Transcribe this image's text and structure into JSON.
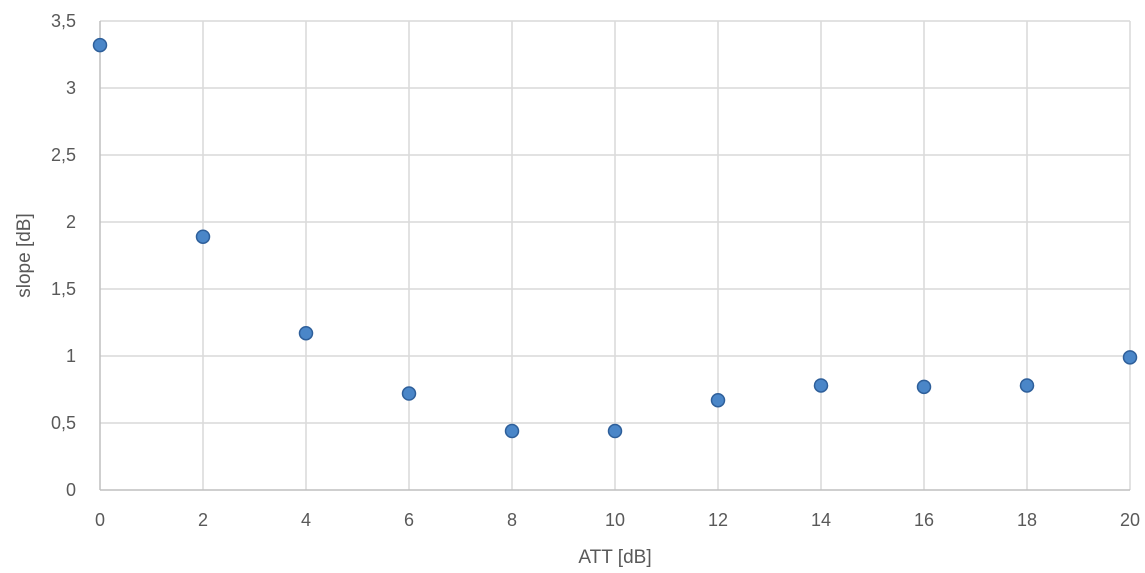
{
  "chart_data": {
    "type": "scatter",
    "title": "",
    "xlabel": "ATT [dB]",
    "ylabel": "slope [dB]",
    "xlim": [
      0,
      20
    ],
    "ylim": [
      0,
      3.5
    ],
    "x_ticks": [
      "0",
      "2",
      "4",
      "6",
      "8",
      "10",
      "12",
      "14",
      "16",
      "18",
      "20"
    ],
    "y_ticks": [
      "0",
      "0,5",
      "1",
      "1,5",
      "2",
      "2,5",
      "3",
      "3,5"
    ],
    "grid": true,
    "legend": "none",
    "marker_color": "#4a86c8",
    "marker_edge_color": "#2e5f9a",
    "grid_color": "#d9d9d9",
    "points": [
      {
        "x": 0,
        "y": 3.32
      },
      {
        "x": 2,
        "y": 1.89
      },
      {
        "x": 4,
        "y": 1.17
      },
      {
        "x": 6,
        "y": 0.72
      },
      {
        "x": 8,
        "y": 0.44
      },
      {
        "x": 10,
        "y": 0.44
      },
      {
        "x": 12,
        "y": 0.67
      },
      {
        "x": 14,
        "y": 0.78
      },
      {
        "x": 16,
        "y": 0.77
      },
      {
        "x": 18,
        "y": 0.78
      },
      {
        "x": 20,
        "y": 0.99
      }
    ]
  }
}
